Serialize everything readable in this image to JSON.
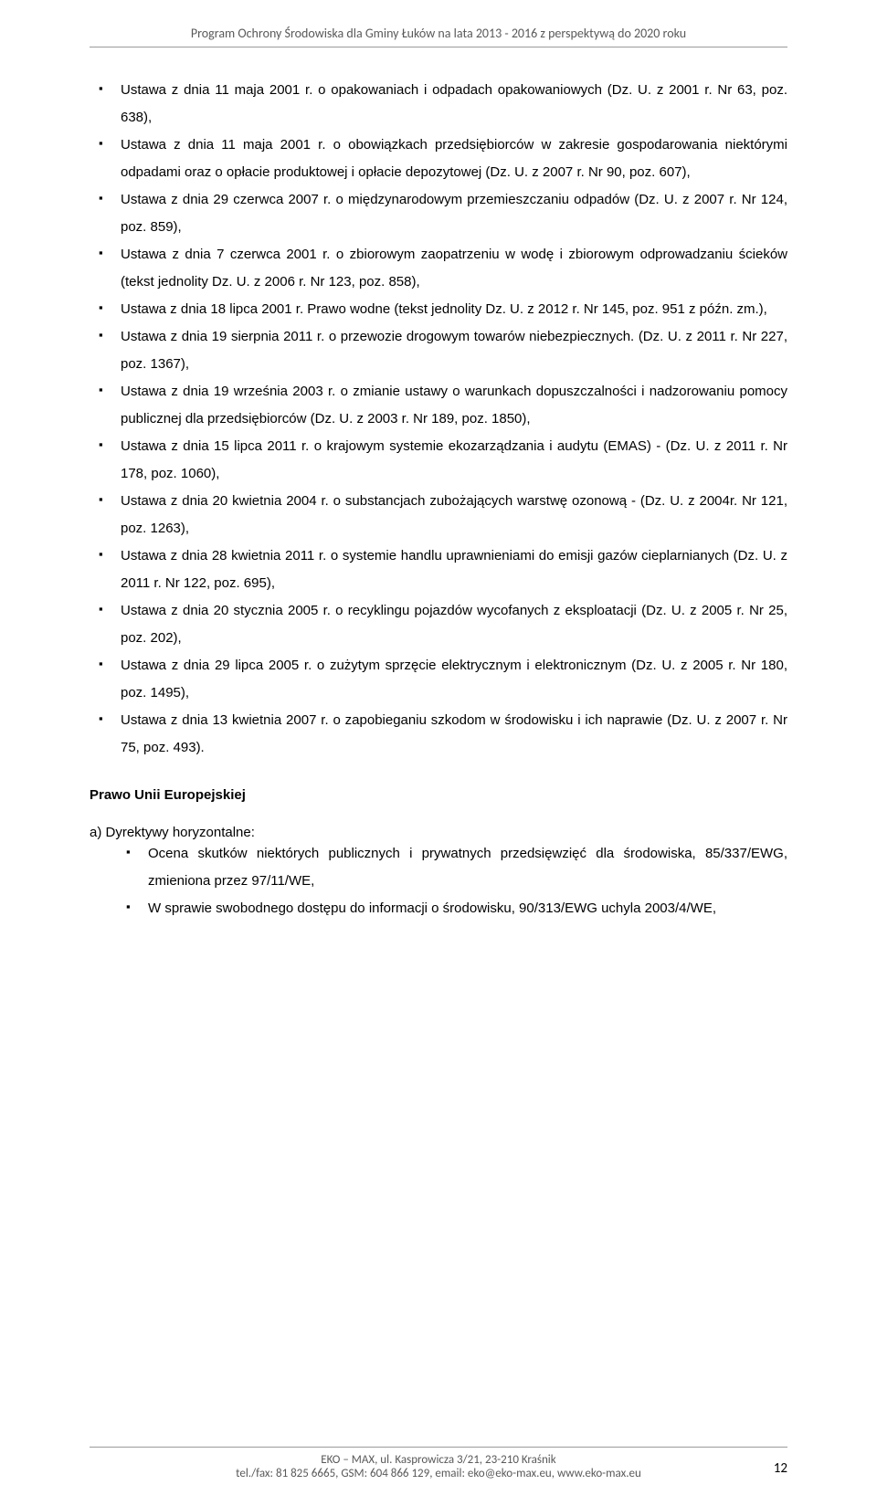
{
  "header": {
    "text": "Program Ochrony Środowiska dla Gminy Łuków na lata 2013 - 2016 z perspektywą do 2020 roku"
  },
  "main_list": [
    "Ustawa z dnia 11 maja 2001 r. o opakowaniach i odpadach opakowaniowych (Dz. U. z 2001 r. Nr 63, poz. 638),",
    "Ustawa z dnia 11 maja 2001 r. o obowiązkach przedsiębiorców w zakresie gospodarowania niektórymi odpadami oraz o opłacie produktowej i opłacie depozytowej (Dz. U. z 2007 r. Nr 90, poz. 607),",
    "Ustawa z dnia 29 czerwca 2007 r. o międzynarodowym przemieszczaniu odpadów (Dz. U. z 2007 r. Nr 124, poz. 859),",
    "Ustawa z dnia 7 czerwca 2001 r. o zbiorowym zaopatrzeniu w wodę i zbiorowym odprowadzaniu ścieków (tekst jednolity Dz. U. z 2006 r. Nr 123, poz. 858),",
    "Ustawa z dnia 18 lipca 2001 r. Prawo wodne (tekst jednolity Dz. U. z 2012 r. Nr 145, poz. 951 z późn. zm.),",
    "Ustawa z dnia 19 sierpnia 2011 r. o przewozie drogowym towarów niebezpiecznych. (Dz. U. z 2011 r. Nr 227, poz. 1367),",
    "Ustawa z dnia 19 września 2003 r. o zmianie ustawy o warunkach dopuszczalności i nadzorowaniu pomocy publicznej dla przedsiębiorców (Dz. U. z 2003 r. Nr 189, poz. 1850),",
    "Ustawa z dnia 15 lipca 2011 r. o krajowym systemie ekozarządzania i audytu (EMAS) - (Dz. U. z 2011 r. Nr 178, poz. 1060),",
    "Ustawa z dnia 20 kwietnia 2004 r. o substancjach zubożających warstwę ozonową - (Dz. U. z 2004r. Nr 121, poz. 1263),",
    "Ustawa z dnia 28 kwietnia 2011 r. o systemie handlu uprawnieniami do emisji gazów cieplarnianych (Dz. U. z 2011 r. Nr 122, poz. 695),",
    "Ustawa z dnia 20 stycznia 2005 r. o recyklingu pojazdów wycofanych z eksploatacji (Dz. U. z 2005 r. Nr 25, poz. 202),",
    "Ustawa z dnia 29 lipca 2005 r. o zużytym sprzęcie elektrycznym i elektronicznym (Dz. U. z 2005 r. Nr 180, poz. 1495),",
    "Ustawa z dnia 13 kwietnia 2007 r. o zapobieganiu szkodom w środowisku i ich naprawie (Dz. U. z 2007 r. Nr 75, poz. 493)."
  ],
  "section_heading": "Prawo Unii Europejskiej",
  "sub_heading": "a) Dyrektywy horyzontalne:",
  "sub_list": [
    "Ocena skutków niektórych publicznych i prywatnych przedsięwzięć dla środowiska, 85/337/EWG, zmieniona przez 97/11/WE,",
    "W sprawie swobodnego dostępu do informacji o środowisku, 90/313/EWG uchyla 2003/4/WE,"
  ],
  "footer": {
    "line1": "EKO – MAX, ul. Kasprowicza 3/21, 23-210 Kraśnik",
    "line2": "tel./fax: 81 825 6665, GSM: 604 866 129, email: eko@eko-max.eu, www.eko-max.eu",
    "page": "12"
  }
}
